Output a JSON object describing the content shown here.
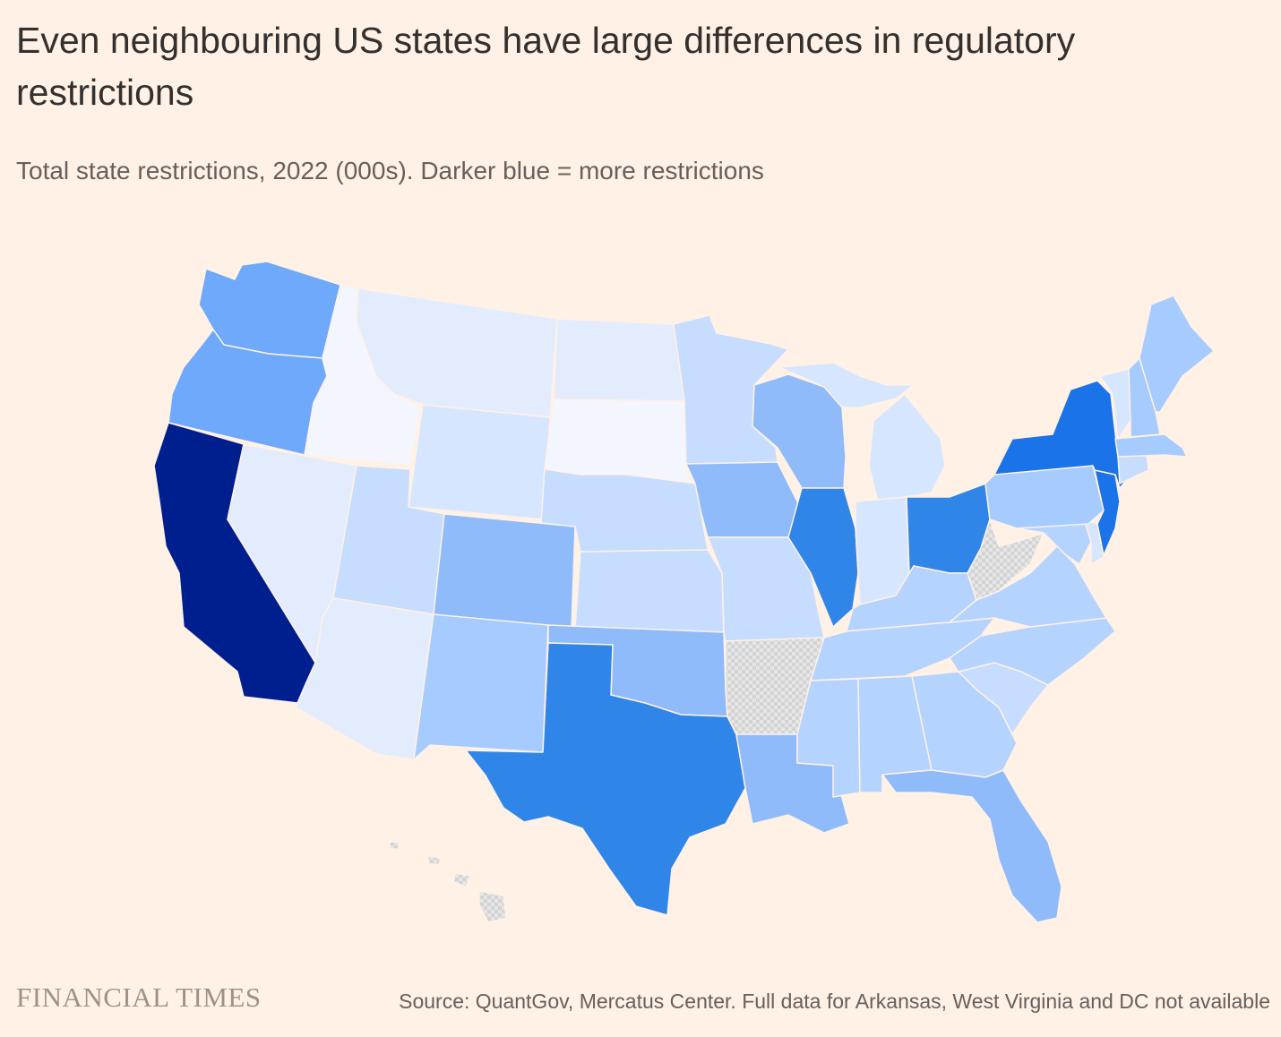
{
  "header": {
    "title": "Even neighbouring US states have large differences in regulatory restrictions",
    "subtitle": "Total state restrictions, 2022 (000s). Darker blue = more restrictions"
  },
  "footer": {
    "logo": "FINANCIAL TIMES",
    "source": "Source: QuantGov, Mercatus Center. Full data for Arkansas, West Virginia and DC not available"
  },
  "colors": {
    "background": "#fff1e5",
    "level_0": "#f4f6ff",
    "level_1": "#e3ecfd",
    "level_2": "#d6e6ff",
    "level_3": "#c6ddff",
    "level_4": "#b5d3ff",
    "level_5": "#a6cbff",
    "level_6": "#8fbbfa",
    "level_7": "#6ea9fb",
    "level_8": "#2f86e8",
    "level_9": "#1a73e8",
    "level_10": "#001f8f",
    "no_data": "#dedede"
  },
  "chart_data": {
    "type": "choropleth",
    "metric": "Total state restrictions, 2022 (000s)",
    "scale_note": "Darker blue = more restrictions",
    "states": [
      {
        "state": "CA",
        "level": 10
      },
      {
        "state": "NY",
        "level": 9
      },
      {
        "state": "NJ",
        "level": 9
      },
      {
        "state": "TX",
        "level": 8
      },
      {
        "state": "IL",
        "level": 8
      },
      {
        "state": "OH",
        "level": 8
      },
      {
        "state": "WA",
        "level": 7
      },
      {
        "state": "OR",
        "level": 7
      },
      {
        "state": "CO",
        "level": 6
      },
      {
        "state": "IA",
        "level": 6
      },
      {
        "state": "WI",
        "level": 6
      },
      {
        "state": "OK",
        "level": 6
      },
      {
        "state": "LA",
        "level": 6
      },
      {
        "state": "FL",
        "level": 6
      },
      {
        "state": "NM",
        "level": 5
      },
      {
        "state": "ME",
        "level": 5
      },
      {
        "state": "NH",
        "level": 5
      },
      {
        "state": "MA",
        "level": 5
      },
      {
        "state": "PA",
        "level": 5
      },
      {
        "state": "VA",
        "level": 4
      },
      {
        "state": "KY",
        "level": 4
      },
      {
        "state": "TN",
        "level": 4
      },
      {
        "state": "AL",
        "level": 4
      },
      {
        "state": "MS",
        "level": 4
      },
      {
        "state": "GA",
        "level": 4
      },
      {
        "state": "NC",
        "level": 4
      },
      {
        "state": "MD",
        "level": 4
      },
      {
        "state": "UT",
        "level": 3
      },
      {
        "state": "MN",
        "level": 3
      },
      {
        "state": "NE",
        "level": 3
      },
      {
        "state": "KS",
        "level": 3
      },
      {
        "state": "MO",
        "level": 3
      },
      {
        "state": "SC",
        "level": 3
      },
      {
        "state": "CT",
        "level": 3
      },
      {
        "state": "WY",
        "level": 2
      },
      {
        "state": "IN",
        "level": 2
      },
      {
        "state": "MI",
        "level": 2
      },
      {
        "state": "VT",
        "level": 2
      },
      {
        "state": "DE",
        "level": 2
      },
      {
        "state": "MT",
        "level": 1
      },
      {
        "state": "ND",
        "level": 1
      },
      {
        "state": "NV",
        "level": 1
      },
      {
        "state": "AZ",
        "level": 1
      },
      {
        "state": "ID",
        "level": 0
      },
      {
        "state": "SD",
        "level": 0
      },
      {
        "state": "AR",
        "level": null
      },
      {
        "state": "WV",
        "level": null
      },
      {
        "state": "HI",
        "level": null
      }
    ]
  }
}
